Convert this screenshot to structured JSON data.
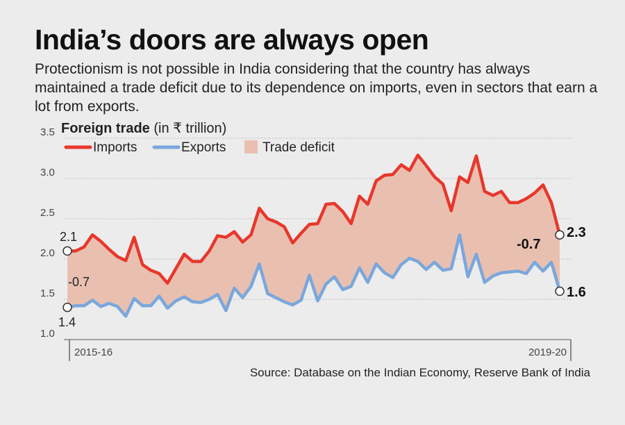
{
  "header": {
    "title": "India’s doors are always open",
    "subtitle": "Protectionism is not possible in India considering that the country has always maintained a trade deficit due to its dependence on imports, even in sectors that earn a lot from exports."
  },
  "chart_heading": {
    "bold": "Foreign trade",
    "rest": "(in ₹ trillion)"
  },
  "source": "Source: Database on the Indian Economy, Reserve Bank of India",
  "colors": {
    "imports": "#e8372c",
    "exports": "#7aa7dc",
    "deficit": "#e9c0b0"
  },
  "chart_data": {
    "type": "line",
    "title": "",
    "ylabel": "",
    "xlabel": "",
    "ylim": [
      1.0,
      3.5
    ],
    "yticks": [
      "3.5",
      "3.0",
      "2.5",
      "2.0",
      "1.5",
      "1.0"
    ],
    "xtick_labels": [
      "2015-16",
      "2019-20"
    ],
    "grid": true,
    "legend": [
      "Imports",
      "Exports",
      "Trade deficit"
    ],
    "legend_position": "top-left",
    "series": [
      {
        "name": "Imports",
        "values": [
          2.1,
          2.1,
          2.15,
          2.3,
          2.22,
          2.12,
          2.03,
          1.98,
          2.27,
          1.93,
          1.86,
          1.82,
          1.7,
          1.88,
          2.06,
          1.97,
          1.97,
          2.1,
          2.29,
          2.27,
          2.34,
          2.21,
          2.3,
          2.63,
          2.5,
          2.46,
          2.4,
          2.2,
          2.32,
          2.43,
          2.44,
          2.68,
          2.69,
          2.59,
          2.44,
          2.78,
          2.68,
          2.97,
          3.04,
          3.05,
          3.17,
          3.1,
          3.29,
          3.16,
          3.02,
          2.93,
          2.6,
          3.02,
          2.95,
          3.28,
          2.84,
          2.79,
          2.84,
          2.7,
          2.7,
          2.75,
          2.82,
          2.92,
          2.7,
          2.3
        ]
      },
      {
        "name": "Exports",
        "values": [
          1.4,
          1.42,
          1.42,
          1.49,
          1.41,
          1.45,
          1.41,
          1.29,
          1.51,
          1.42,
          1.42,
          1.54,
          1.39,
          1.48,
          1.53,
          1.47,
          1.46,
          1.5,
          1.56,
          1.36,
          1.64,
          1.52,
          1.66,
          1.94,
          1.57,
          1.52,
          1.47,
          1.43,
          1.49,
          1.8,
          1.48,
          1.69,
          1.78,
          1.62,
          1.66,
          1.89,
          1.71,
          1.94,
          1.83,
          1.77,
          1.93,
          2.01,
          1.97,
          1.87,
          1.96,
          1.86,
          1.88,
          2.3,
          1.78,
          2.06,
          1.71,
          1.79,
          1.83,
          1.84,
          1.85,
          1.82,
          1.96,
          1.85,
          1.96,
          1.6
        ]
      }
    ],
    "annotations": {
      "imports_start": "2.1",
      "exports_start": "1.4",
      "deficit_start": "-0.7",
      "imports_end": "2.3",
      "exports_end": "1.6",
      "deficit_end": "-0.7"
    }
  }
}
